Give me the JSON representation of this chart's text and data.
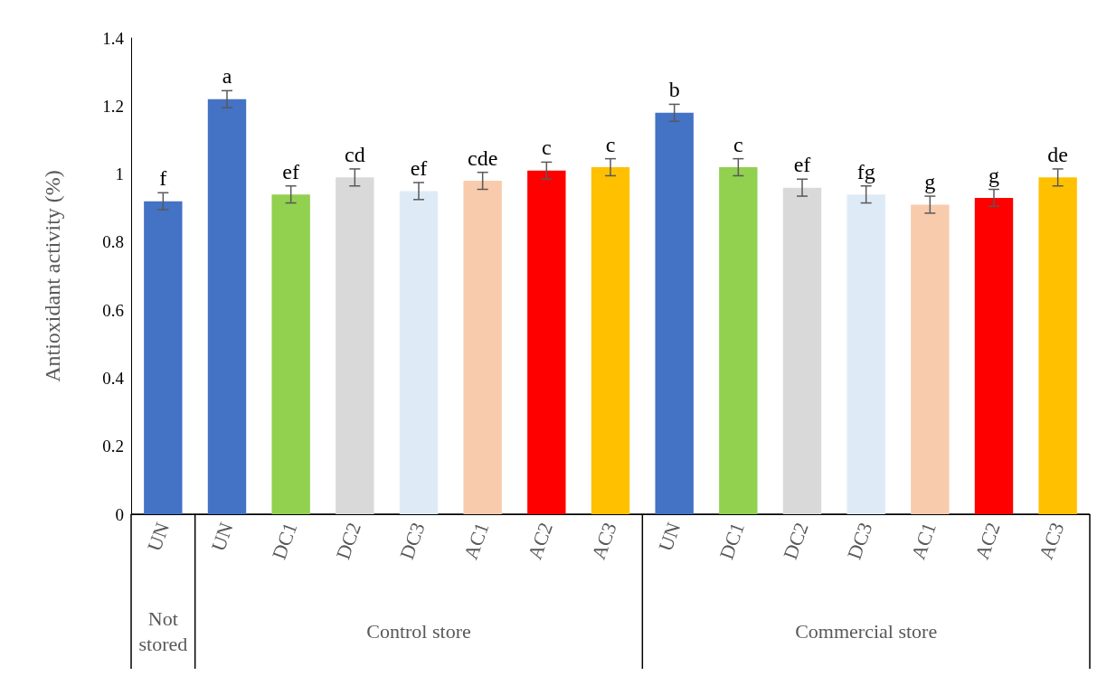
{
  "chart_data": {
    "type": "bar",
    "ylabel": "Antioxidant activity (%)",
    "categories": [
      "UN",
      "UN",
      "DC1",
      "DC2",
      "DC3",
      "AC1",
      "AC2",
      "AC3",
      "UN",
      "DC1",
      "DC2",
      "DC3",
      "AC1",
      "AC2",
      "AC3"
    ],
    "values": [
      0.92,
      1.22,
      0.94,
      0.99,
      0.95,
      0.98,
      1.01,
      1.02,
      1.18,
      1.02,
      0.96,
      0.94,
      0.91,
      0.93,
      0.99
    ],
    "colors": [
      "#4472c4",
      "#4472c4",
      "#92d050",
      "#d9d9d9",
      "#deebf7",
      "#f8cbad",
      "#ff0000",
      "#ffc000",
      "#4472c4",
      "#92d050",
      "#d9d9d9",
      "#deebf7",
      "#f8cbad",
      "#ff0000",
      "#ffc000"
    ],
    "errors": [
      0.025,
      0.025,
      0.025,
      0.025,
      0.025,
      0.025,
      0.025,
      0.025,
      0.025,
      0.025,
      0.025,
      0.025,
      0.025,
      0.025,
      0.025
    ],
    "value_labels": [
      "f",
      "a",
      "ef",
      "cd",
      "ef",
      "cde",
      "c",
      "c",
      "b",
      "c",
      "ef",
      "fg",
      "g",
      "g",
      "de"
    ],
    "ylim": [
      0,
      1.4
    ],
    "yticks": [
      0,
      0.2,
      0.4,
      0.6,
      0.8,
      1,
      1.2,
      1.4
    ],
    "grid": false,
    "annotations": [
      "Not\nstored",
      "Control store",
      "Commercial store"
    ]
  }
}
